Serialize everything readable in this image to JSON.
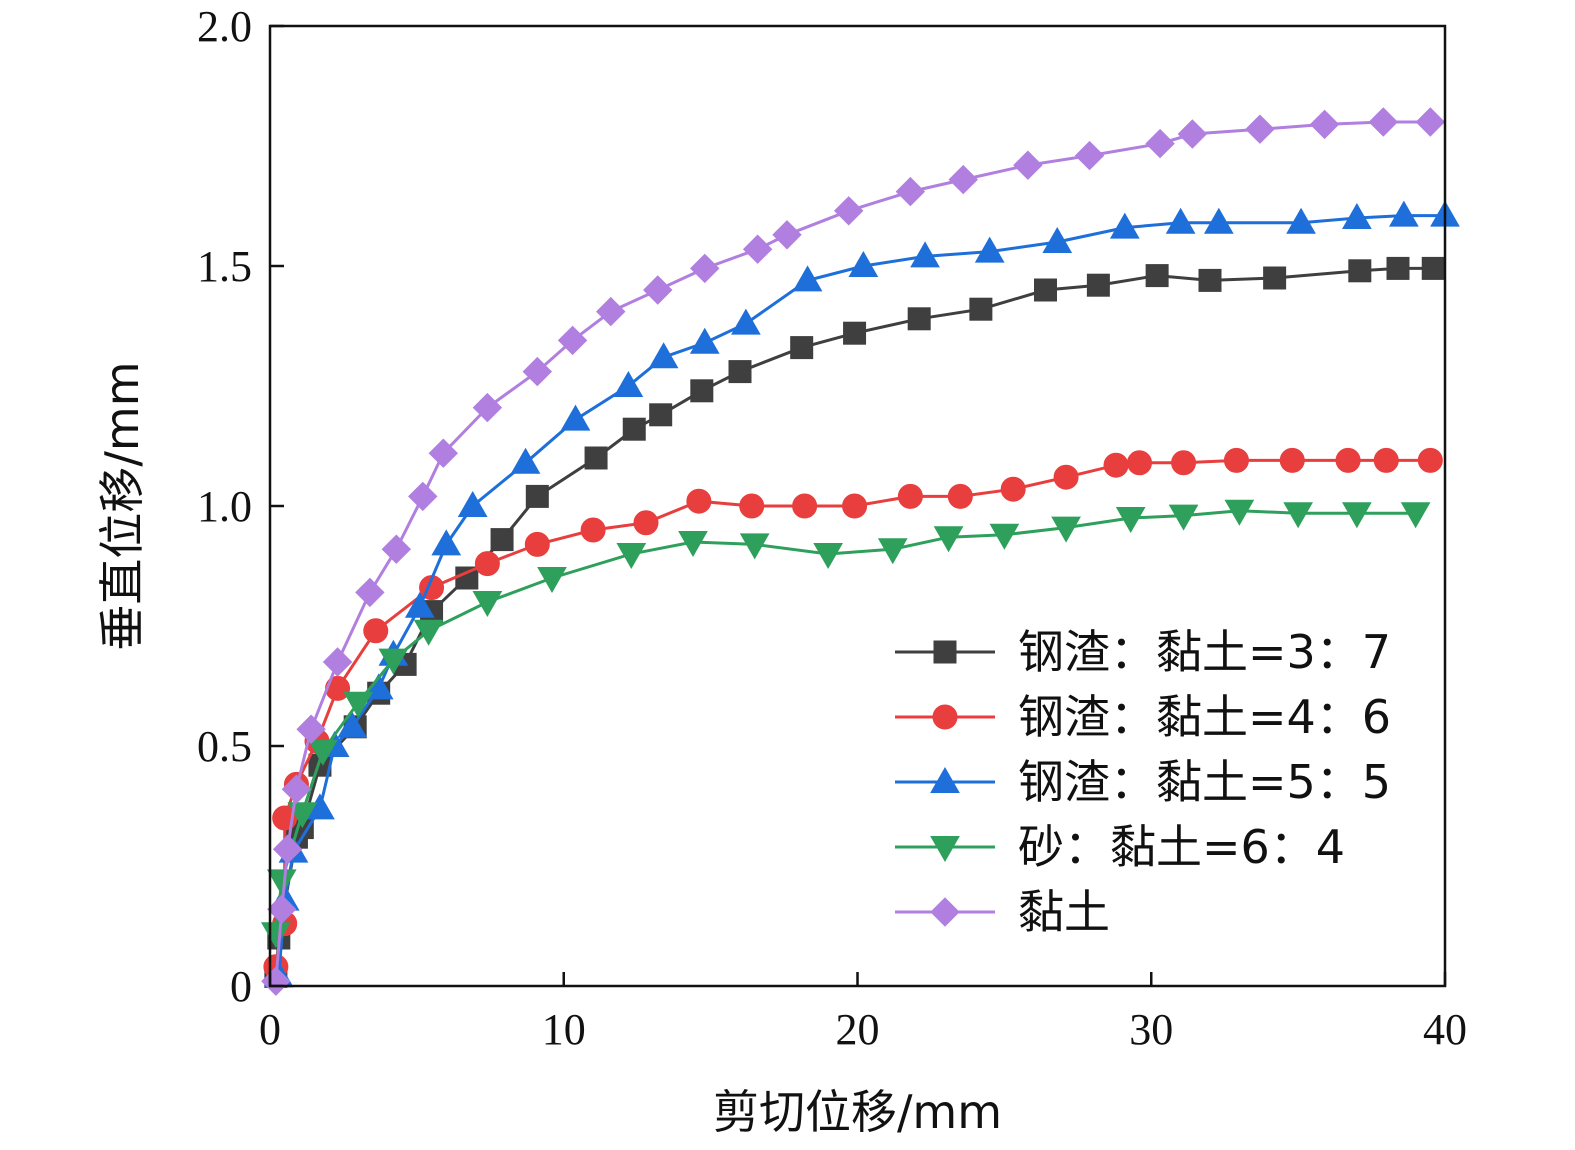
{
  "chart_data": {
    "type": "line",
    "xlabel": "剪切位移/mm",
    "ylabel": "垂直位移/mm",
    "xlim": [
      0,
      40
    ],
    "ylim": [
      0,
      2.0
    ],
    "xticks": [
      0,
      10,
      20,
      30,
      40
    ],
    "yticks": [
      0,
      0.5,
      1.0,
      1.5,
      2.0
    ],
    "xtick_labels": [
      "0",
      "10",
      "20",
      "30",
      "40"
    ],
    "ytick_labels": [
      "0",
      "0.5",
      "1.0",
      "1.5",
      "2.0"
    ],
    "grid": false,
    "legend_position": "bottom-right",
    "series": [
      {
        "name": "钢渣：黏土=3：7",
        "color": "#3f3f3f",
        "marker": "square",
        "x": [
          0.2,
          0.3,
          0.9,
          1.1,
          1.7,
          2.9,
          3.7,
          4.6,
          5.5,
          6.7,
          7.9,
          9.1,
          11.1,
          12.4,
          13.3,
          14.7,
          16.0,
          18.1,
          19.9,
          22.1,
          24.2,
          26.4,
          28.2,
          30.2,
          32.0,
          34.2,
          37.1,
          38.4,
          39.6
        ],
        "y": [
          0.02,
          0.1,
          0.31,
          0.33,
          0.46,
          0.54,
          0.61,
          0.67,
          0.78,
          0.85,
          0.93,
          1.02,
          1.1,
          1.16,
          1.19,
          1.24,
          1.28,
          1.33,
          1.36,
          1.39,
          1.41,
          1.45,
          1.46,
          1.48,
          1.47,
          1.475,
          1.49,
          1.495,
          1.495
        ]
      },
      {
        "name": "钢渣：黏土=4：6",
        "color": "#e83e3e",
        "marker": "circle",
        "x": [
          0.2,
          0.5,
          0.5,
          0.9,
          1.6,
          2.3,
          3.6,
          5.5,
          7.4,
          9.1,
          11.0,
          12.8,
          14.6,
          16.4,
          18.2,
          19.9,
          21.8,
          23.5,
          25.3,
          27.1,
          28.8,
          29.6,
          31.1,
          32.9,
          34.8,
          36.7,
          38.0,
          39.5
        ],
        "y": [
          0.04,
          0.13,
          0.35,
          0.42,
          0.51,
          0.62,
          0.74,
          0.83,
          0.88,
          0.92,
          0.95,
          0.965,
          1.01,
          1.0,
          1.0,
          1.0,
          1.02,
          1.02,
          1.035,
          1.06,
          1.085,
          1.09,
          1.09,
          1.095,
          1.095,
          1.095,
          1.095,
          1.095
        ]
      },
      {
        "name": "钢渣：黏土=5：5",
        "color": "#1e6fd9",
        "marker": "triangle-up",
        "x": [
          0.3,
          0.5,
          0.8,
          1.7,
          2.2,
          2.8,
          3.7,
          4.2,
          5.1,
          6.0,
          6.9,
          8.7,
          10.4,
          12.2,
          13.4,
          14.8,
          16.2,
          18.3,
          20.2,
          22.3,
          24.5,
          26.8,
          29.1,
          31.0,
          32.3,
          35.1,
          37.0,
          38.6,
          40.0
        ],
        "y": [
          0.02,
          0.18,
          0.28,
          0.37,
          0.5,
          0.54,
          0.62,
          0.69,
          0.79,
          0.92,
          1.0,
          1.09,
          1.18,
          1.25,
          1.31,
          1.34,
          1.38,
          1.47,
          1.5,
          1.52,
          1.53,
          1.55,
          1.58,
          1.59,
          1.59,
          1.59,
          1.6,
          1.605,
          1.605
        ]
      },
      {
        "name": "砂：黏土=6：4",
        "color": "#2ea05c",
        "marker": "triangle-down",
        "x": [
          0.2,
          0.4,
          1.1,
          1.8,
          3.0,
          4.2,
          5.4,
          7.4,
          9.6,
          12.3,
          14.4,
          16.5,
          19.0,
          21.2,
          23.1,
          25.0,
          27.1,
          29.3,
          31.1,
          33.0,
          35.0,
          37.0,
          39.0
        ],
        "y": [
          0.11,
          0.22,
          0.36,
          0.49,
          0.59,
          0.68,
          0.74,
          0.8,
          0.85,
          0.9,
          0.925,
          0.92,
          0.9,
          0.91,
          0.935,
          0.94,
          0.955,
          0.975,
          0.98,
          0.99,
          0.985,
          0.985,
          0.985
        ]
      },
      {
        "name": "黏土",
        "color": "#b07fdf",
        "marker": "diamond",
        "x": [
          0.2,
          0.4,
          0.6,
          0.9,
          1.4,
          2.3,
          3.4,
          4.3,
          5.2,
          5.9,
          7.4,
          9.1,
          10.3,
          11.6,
          13.2,
          14.8,
          16.6,
          17.6,
          19.7,
          21.8,
          23.6,
          25.8,
          27.9,
          30.3,
          31.4,
          33.7,
          35.9,
          37.9,
          39.5
        ],
        "y": [
          0.01,
          0.16,
          0.285,
          0.41,
          0.535,
          0.675,
          0.82,
          0.91,
          1.02,
          1.11,
          1.205,
          1.28,
          1.345,
          1.405,
          1.45,
          1.495,
          1.535,
          1.565,
          1.615,
          1.655,
          1.68,
          1.71,
          1.73,
          1.755,
          1.775,
          1.785,
          1.795,
          1.8,
          1.8
        ]
      }
    ]
  }
}
